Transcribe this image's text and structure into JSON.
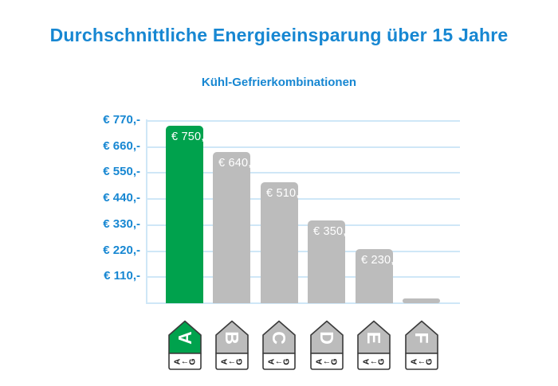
{
  "header": {
    "title": "Durchschnittliche Energieeinsparung über 15 Jahre",
    "subtitle": "Kühl-Gefrierkombinationen"
  },
  "colors": {
    "title_blue": "#1787D2",
    "axis_label_blue": "#1787D2",
    "grid_blue": "#CFE7F7",
    "bar_highlight_green": "#00A24D",
    "bar_gray": "#BCBCBC",
    "bar_label_white": "#FFFFFF",
    "tag_border": "#3A3A3A",
    "tag_scale_text": "#1A1A1A",
    "background": "#FFFFFF"
  },
  "chart_data": {
    "type": "bar",
    "title": "Durchschnittliche Energieeinsparung über 15 Jahre",
    "subtitle": "Kühl-Gefrierkombinationen",
    "unit": "€",
    "categories": [
      "A",
      "B",
      "C",
      "D",
      "E",
      "F"
    ],
    "values": [
      750,
      640,
      510,
      350,
      230,
      20
    ],
    "bar_labels": [
      "€ 750,-",
      "€ 640,-",
      "€ 510,-",
      "€ 350,-",
      "€ 230,-",
      ""
    ],
    "highlighted_index": 0,
    "bar_colors": {
      "highlight": "#00A24D",
      "default": "#BCBCBC"
    },
    "ylim": [
      0,
      770
    ],
    "y_ticks": [
      {
        "value": 770,
        "label": "€ 770,-"
      },
      {
        "value": 660,
        "label": "€ 660,-"
      },
      {
        "value": 550,
        "label": "€ 550,-"
      },
      {
        "value": 440,
        "label": "€ 440,-"
      },
      {
        "value": 330,
        "label": "€ 330,-"
      },
      {
        "value": 220,
        "label": "€ 220,-"
      },
      {
        "value": 110,
        "label": "€ 110,-"
      }
    ],
    "grid": true,
    "legend": "none",
    "x_axis_style": "EU energy efficiency class arrow tags pointing up",
    "class_scale_label": {
      "from": "A",
      "arrow": "←",
      "to": "G"
    }
  }
}
